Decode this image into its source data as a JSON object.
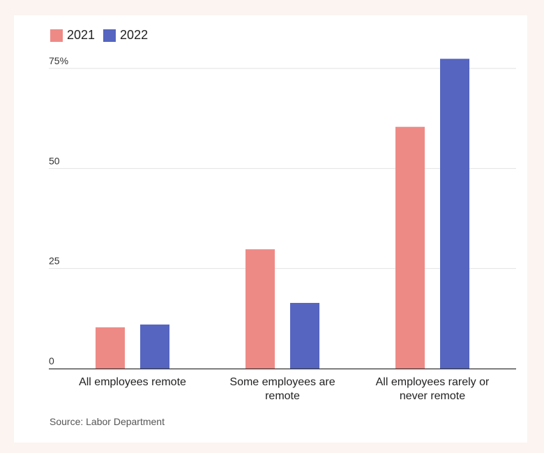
{
  "chart_data": {
    "type": "bar",
    "title": "",
    "xlabel": "",
    "ylabel": "",
    "categories": [
      [
        "All employees remote"
      ],
      [
        "Some employees are",
        "remote"
      ],
      [
        "All employees rarely or",
        "never remote"
      ]
    ],
    "series": [
      {
        "name": "2021",
        "color": "#ee8a86",
        "values": [
          10.3,
          29.8,
          60.4
        ]
      },
      {
        "name": "2022",
        "color": "#5565c0",
        "values": [
          11.0,
          16.4,
          77.4
        ]
      }
    ],
    "ylim": [
      0,
      77
    ],
    "yticks": [
      {
        "value": 0,
        "label": "0"
      },
      {
        "value": 25,
        "label": "25"
      },
      {
        "value": 50,
        "label": "50"
      },
      {
        "value": 75,
        "label": "75%"
      }
    ],
    "legend_position": "top-left",
    "grid": true
  },
  "source": "Source: Labor Department"
}
